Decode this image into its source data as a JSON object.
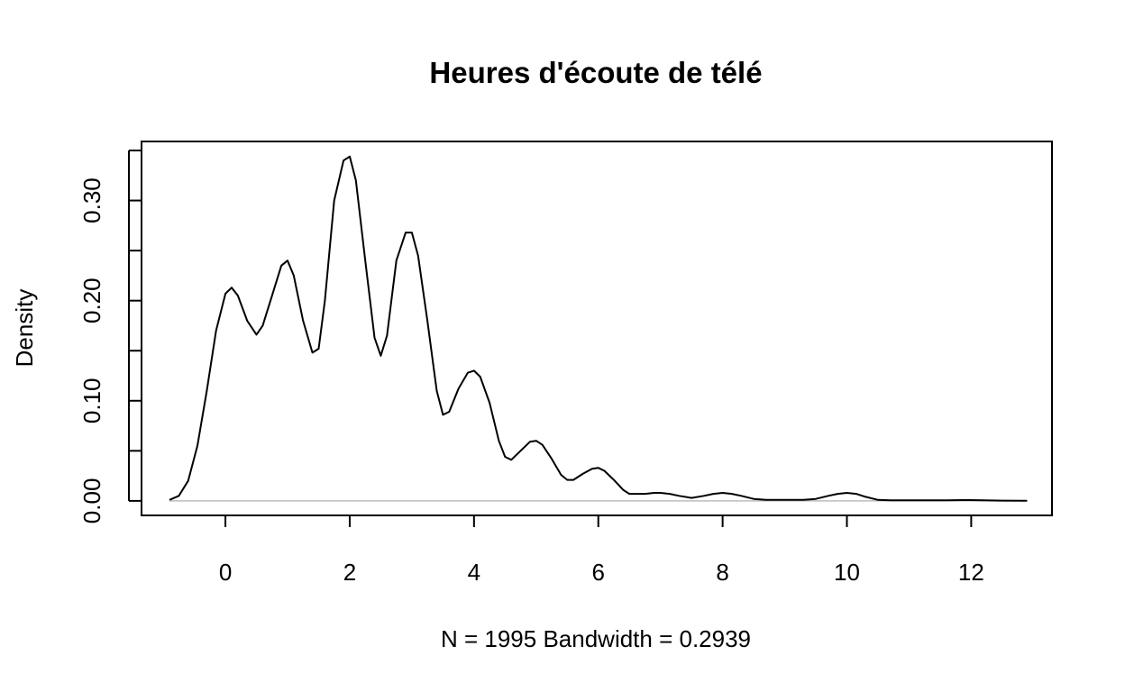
{
  "chart_data": {
    "type": "line",
    "title": "Heures d'écoute de télé",
    "xlabel": "N = 1995   Bandwidth = 0.2939",
    "ylabel": "Density",
    "xlim": [
      -1.35,
      13.3
    ],
    "ylim": [
      -0.0145,
      0.359
    ],
    "x_ticks": [
      0,
      2,
      4,
      6,
      8,
      10,
      12
    ],
    "x_tick_labels": [
      "0",
      "2",
      "4",
      "6",
      "8",
      "10",
      "12"
    ],
    "y_ticks": [
      0.0,
      0.05,
      0.1,
      0.15,
      0.2,
      0.25,
      0.3,
      0.35
    ],
    "y_tick_labels": [
      "0.00",
      "",
      "0.10",
      "",
      "0.20",
      "",
      "0.30",
      ""
    ],
    "baseline": 0,
    "grid": false,
    "legend": "none",
    "colors": {
      "line": "#000000",
      "baseline": "#bebebe",
      "axis": "#000000"
    },
    "series": [
      {
        "x": [
          -0.9,
          -0.75,
          -0.6,
          -0.45,
          -0.3,
          -0.15,
          0.0,
          0.1,
          0.2,
          0.35,
          0.5,
          0.6,
          0.75,
          0.9,
          1.0,
          1.1,
          1.25,
          1.4,
          1.5,
          1.6,
          1.75,
          1.9,
          2.0,
          2.1,
          2.25,
          2.4,
          2.5,
          2.6,
          2.75,
          2.9,
          3.0,
          3.1,
          3.25,
          3.4,
          3.5,
          3.6,
          3.75,
          3.9,
          4.0,
          4.1,
          4.25,
          4.4,
          4.5,
          4.6,
          4.75,
          4.9,
          5.0,
          5.1,
          5.25,
          5.4,
          5.5,
          5.6,
          5.75,
          5.9,
          6.0,
          6.1,
          6.25,
          6.4,
          6.5,
          6.6,
          6.75,
          6.9,
          7.0,
          7.15,
          7.3,
          7.5,
          7.7,
          7.85,
          8.0,
          8.15,
          8.3,
          8.5,
          8.7,
          8.9,
          9.1,
          9.3,
          9.5,
          9.7,
          9.85,
          10.0,
          10.15,
          10.3,
          10.5,
          10.7,
          11.0,
          11.3,
          11.6,
          11.85,
          12.0,
          12.2,
          12.5,
          12.9
        ],
        "y": [
          0.001,
          0.005,
          0.02,
          0.055,
          0.11,
          0.17,
          0.207,
          0.213,
          0.205,
          0.18,
          0.166,
          0.175,
          0.205,
          0.235,
          0.24,
          0.225,
          0.18,
          0.148,
          0.152,
          0.2,
          0.3,
          0.34,
          0.344,
          0.32,
          0.24,
          0.163,
          0.145,
          0.165,
          0.24,
          0.268,
          0.268,
          0.245,
          0.18,
          0.11,
          0.086,
          0.089,
          0.112,
          0.128,
          0.13,
          0.124,
          0.098,
          0.06,
          0.044,
          0.041,
          0.05,
          0.059,
          0.06,
          0.056,
          0.042,
          0.026,
          0.021,
          0.021,
          0.027,
          0.032,
          0.033,
          0.03,
          0.021,
          0.011,
          0.007,
          0.007,
          0.007,
          0.008,
          0.008,
          0.007,
          0.005,
          0.003,
          0.005,
          0.007,
          0.008,
          0.007,
          0.005,
          0.002,
          0.001,
          0.001,
          0.001,
          0.001,
          0.002,
          0.005,
          0.007,
          0.008,
          0.007,
          0.004,
          0.001,
          0.0005,
          0.0005,
          0.0005,
          0.0005,
          0.0008,
          0.0008,
          0.0006,
          0.0003,
          0.0001
        ]
      }
    ]
  }
}
